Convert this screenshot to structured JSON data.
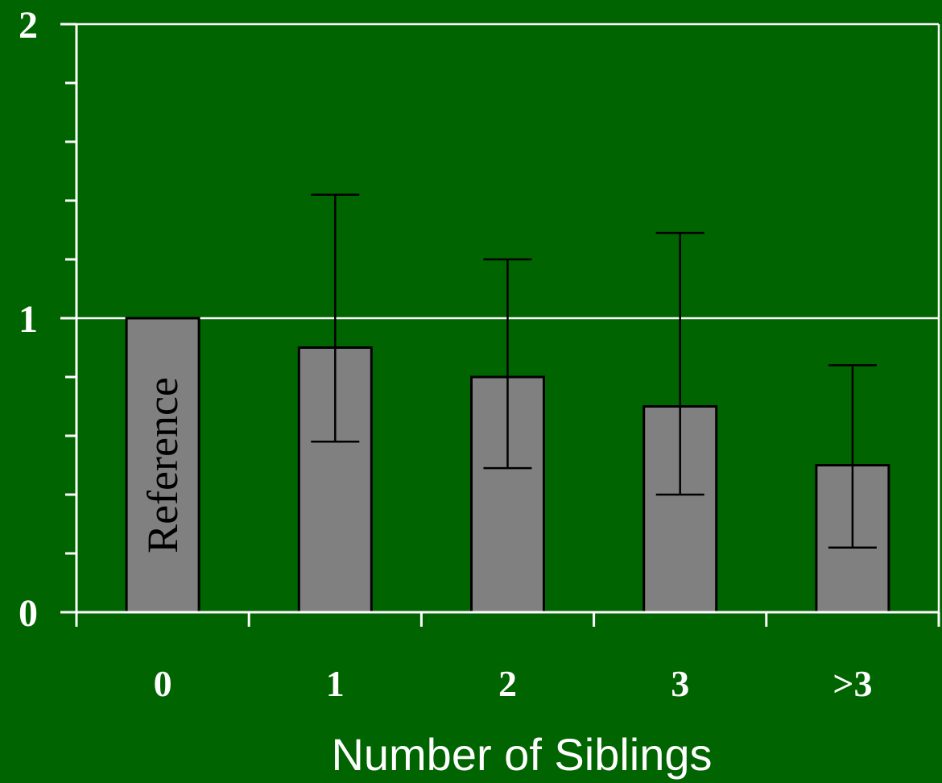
{
  "chart_data": {
    "type": "bar",
    "title": "",
    "xlabel": "Number of Siblings",
    "ylabel": "",
    "categories": [
      "0",
      "1",
      "2",
      "3",
      ">3"
    ],
    "values": [
      1.0,
      0.9,
      0.8,
      0.7,
      0.5
    ],
    "error_bars": [
      null,
      {
        "low": 0.58,
        "high": 1.42
      },
      {
        "low": 0.49,
        "high": 1.2
      },
      {
        "low": 0.4,
        "high": 1.29
      },
      {
        "low": 0.22,
        "high": 0.84
      }
    ],
    "annotations": [
      {
        "category": "0",
        "text": "Reference"
      }
    ],
    "ylim": [
      0,
      2
    ],
    "yticks": [
      "0",
      "1",
      "2"
    ],
    "y_minor_step": 0.2,
    "grid": {
      "horizontal_at": [
        1,
        2
      ]
    },
    "legend": "none",
    "colors": {
      "background": "#006400",
      "bar_fill": "#808080",
      "bar_stroke": "#000000",
      "error_bar": "#000000",
      "axes": "#ffffff",
      "text": "#ffffff"
    }
  }
}
